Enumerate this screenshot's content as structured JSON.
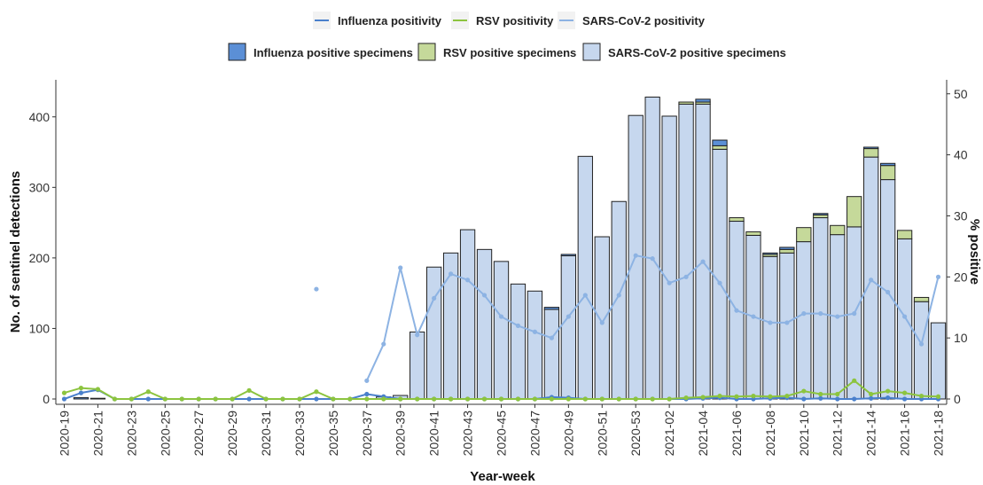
{
  "chart_data": {
    "type": "bar",
    "subtype": "stacked bar with lines on secondary axis",
    "xlabel": "Year-week",
    "ylabel": "No. of sentinel detections",
    "y2label": "% positive",
    "ylim": [
      0,
      450
    ],
    "y_ticks": [
      0,
      100,
      200,
      300,
      400
    ],
    "y2lim": [
      0,
      52
    ],
    "y2_ticks": [
      0,
      10,
      20,
      30,
      40,
      50
    ],
    "grid": false,
    "legend_position": "top",
    "legend_lines": [
      "Influenza positivity",
      "RSV positivity",
      "SARS-CoV-2 positivity"
    ],
    "legend_bars": [
      "Influenza positive specimens",
      "RSV positive specimens",
      "SARS-CoV-2 positive specimens"
    ],
    "colors": {
      "influenza_bar": "#5b8fd6",
      "rsv_bar": "#c5d99a",
      "sars_bar": "#c6d7ee",
      "influenza_line": "#4a80cc",
      "rsv_line": "#8cc43f",
      "sars_line": "#8db3e3",
      "bar_outline": "#222222"
    },
    "categories": [
      "2020-19",
      "2020-20",
      "2020-21",
      "2020-22",
      "2020-23",
      "2020-24",
      "2020-25",
      "2020-26",
      "2020-27",
      "2020-28",
      "2020-29",
      "2020-30",
      "2020-31",
      "2020-32",
      "2020-33",
      "2020-34",
      "2020-35",
      "2020-36",
      "2020-37",
      "2020-38",
      "2020-39",
      "2020-40",
      "2020-41",
      "2020-42",
      "2020-43",
      "2020-44",
      "2020-45",
      "2020-46",
      "2020-47",
      "2020-48",
      "2020-49",
      "2020-50",
      "2020-51",
      "2020-52",
      "2020-53",
      "2021-01",
      "2021-02",
      "2021-03",
      "2021-04",
      "2021-05",
      "2021-06",
      "2021-07",
      "2021-08",
      "2021-09",
      "2021-10",
      "2021-11",
      "2021-12",
      "2021-13",
      "2021-14",
      "2021-15",
      "2021-16",
      "2021-17",
      "2021-18"
    ],
    "x_tick_labels": [
      "2020-19",
      "2020-21",
      "2020-23",
      "2020-25",
      "2020-27",
      "2020-29",
      "2020-31",
      "2020-33",
      "2020-35",
      "2020-37",
      "2020-39",
      "2020-41",
      "2020-43",
      "2020-45",
      "2020-47",
      "2020-49",
      "2020-51",
      "2020-53",
      "2021-02",
      "2021-04",
      "2021-06",
      "2021-08",
      "2021-10",
      "2021-12",
      "2021-14",
      "2021-16",
      "2021-18"
    ],
    "series": [
      {
        "name": "Influenza positive specimens",
        "kind": "bar",
        "axis": "left",
        "values": [
          0,
          2,
          1,
          0,
          0,
          0,
          0,
          0,
          0,
          0,
          0,
          0,
          0,
          0,
          0,
          0,
          0,
          0,
          0,
          0,
          0,
          0,
          0,
          0,
          0,
          0,
          0,
          0,
          0,
          3,
          2,
          0,
          0,
          0,
          0,
          0,
          0,
          0,
          4,
          8,
          0,
          0,
          2,
          3,
          0,
          2,
          0,
          0,
          2,
          3,
          0,
          0,
          0
        ]
      },
      {
        "name": "RSV positive specimens",
        "kind": "bar",
        "axis": "left",
        "values": [
          0,
          0,
          0,
          0,
          0,
          0,
          0,
          0,
          0,
          0,
          0,
          0,
          0,
          0,
          0,
          0,
          0,
          0,
          0,
          0,
          0,
          0,
          0,
          0,
          0,
          0,
          0,
          0,
          0,
          0,
          0,
          0,
          0,
          0,
          0,
          0,
          0,
          3,
          3,
          5,
          5,
          5,
          3,
          5,
          20,
          4,
          13,
          43,
          12,
          20,
          12,
          6,
          0
        ]
      },
      {
        "name": "SARS-CoV-2 positive specimens",
        "kind": "bar",
        "axis": "left",
        "values": [
          0,
          0,
          0,
          0,
          0,
          0,
          0,
          0,
          0,
          0,
          0,
          0,
          0,
          0,
          0,
          0,
          0,
          0,
          0,
          3,
          5,
          95,
          187,
          207,
          240,
          212,
          195,
          163,
          153,
          127,
          203,
          344,
          230,
          280,
          402,
          428,
          401,
          418,
          418,
          354,
          252,
          232,
          202,
          207,
          223,
          257,
          233,
          244,
          343,
          311,
          227,
          138,
          108
        ]
      },
      {
        "name": "Influenza positivity",
        "kind": "line",
        "axis": "right",
        "values": [
          0,
          1,
          1.5,
          0,
          0,
          0,
          0,
          0,
          0,
          0,
          0,
          0,
          0,
          0,
          0,
          0,
          0,
          0,
          0.8,
          0.4,
          0,
          0,
          0,
          0,
          0,
          0,
          0,
          0,
          0,
          0.3,
          0.2,
          0,
          0,
          0,
          0,
          0,
          0,
          0,
          0.1,
          0.2,
          0,
          0,
          0.1,
          0.2,
          0,
          0.1,
          0,
          0,
          0.1,
          0.2,
          0,
          0,
          0
        ]
      },
      {
        "name": "RSV positivity",
        "kind": "line",
        "axis": "right",
        "values": [
          1,
          1.8,
          1.6,
          0,
          0,
          1.2,
          0,
          0,
          0,
          0,
          0,
          1.4,
          0,
          0,
          0,
          1.2,
          0,
          0,
          0,
          0,
          0,
          0,
          0,
          0,
          0,
          0,
          0,
          0,
          0,
          0,
          0,
          0,
          0,
          0,
          0,
          0,
          0,
          0.2,
          0.3,
          0.5,
          0.4,
          0.5,
          0.4,
          0.5,
          1.3,
          0.8,
          0.8,
          3.0,
          0.8,
          1.3,
          1.0,
          0.5,
          0.4
        ]
      },
      {
        "name": "SARS-CoV-2 positivity",
        "kind": "line",
        "axis": "right",
        "values": [
          null,
          null,
          null,
          null,
          null,
          null,
          null,
          null,
          null,
          null,
          null,
          null,
          null,
          null,
          null,
          18,
          null,
          null,
          3,
          9,
          21.5,
          10.5,
          16.5,
          20.5,
          19.5,
          17,
          13.5,
          12,
          11,
          10,
          13.5,
          17,
          12.5,
          17,
          23.5,
          23,
          19,
          20,
          22.5,
          19,
          14.5,
          13.5,
          12.5,
          12.5,
          14,
          14,
          13.5,
          14,
          19.5,
          17.5,
          13.5,
          9,
          20
        ]
      }
    ]
  }
}
